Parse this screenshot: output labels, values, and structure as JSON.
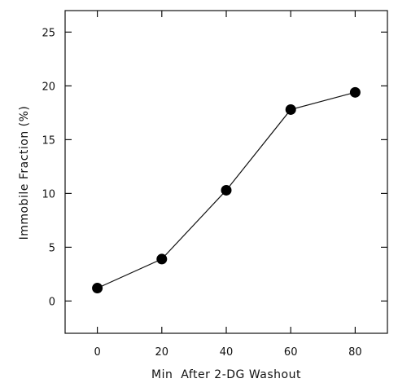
{
  "chart_data": {
    "type": "line",
    "title": "",
    "xlabel": "Min  After 2-DG Washout",
    "ylabel": "Immobile Fraction (%)",
    "x": [
      0,
      20,
      40,
      60,
      80
    ],
    "series": [
      {
        "values": [
          1.2,
          3.9,
          10.3,
          17.8,
          19.4
        ]
      }
    ],
    "xlim": [
      -10,
      90
    ],
    "ylim": [
      -3,
      27
    ],
    "xticks": [
      "0",
      "20",
      "40",
      "60",
      "80"
    ],
    "yticks": [
      "0",
      "5",
      "10",
      "15",
      "20",
      "25"
    ],
    "grid": false,
    "legend": "none",
    "colors": {
      "line": "#111111",
      "marker": "#000000"
    }
  }
}
